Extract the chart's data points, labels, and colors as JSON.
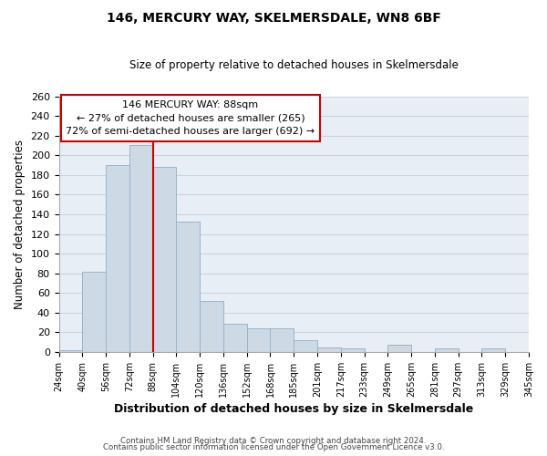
{
  "title": "146, MERCURY WAY, SKELMERSDALE, WN8 6BF",
  "subtitle": "Size of property relative to detached houses in Skelmersdale",
  "xlabel": "Distribution of detached houses by size in Skelmersdale",
  "ylabel": "Number of detached properties",
  "footer_line1": "Contains HM Land Registry data © Crown copyright and database right 2024.",
  "footer_line2": "Contains public sector information licensed under the Open Government Licence v3.0.",
  "bin_labels": [
    "24sqm",
    "40sqm",
    "56sqm",
    "72sqm",
    "88sqm",
    "104sqm",
    "120sqm",
    "136sqm",
    "152sqm",
    "168sqm",
    "185sqm",
    "201sqm",
    "217sqm",
    "233sqm",
    "249sqm",
    "265sqm",
    "281sqm",
    "297sqm",
    "313sqm",
    "329sqm",
    "345sqm"
  ],
  "bar_heights": [
    2,
    82,
    190,
    210,
    188,
    133,
    52,
    29,
    24,
    24,
    12,
    5,
    4,
    0,
    7,
    0,
    4,
    0,
    4,
    0
  ],
  "bar_color": "#cdd9e5",
  "bar_edgecolor": "#9ab5cc",
  "vline_color": "#cc0000",
  "annotation_box_edgecolor": "#cc0000",
  "ylim": [
    0,
    260
  ],
  "yticks": [
    0,
    20,
    40,
    60,
    80,
    100,
    120,
    140,
    160,
    180,
    200,
    220,
    240,
    260
  ],
  "background_color": "#ffffff",
  "plot_bg_color": "#e8eef5",
  "grid_color": "#c8d4dc"
}
